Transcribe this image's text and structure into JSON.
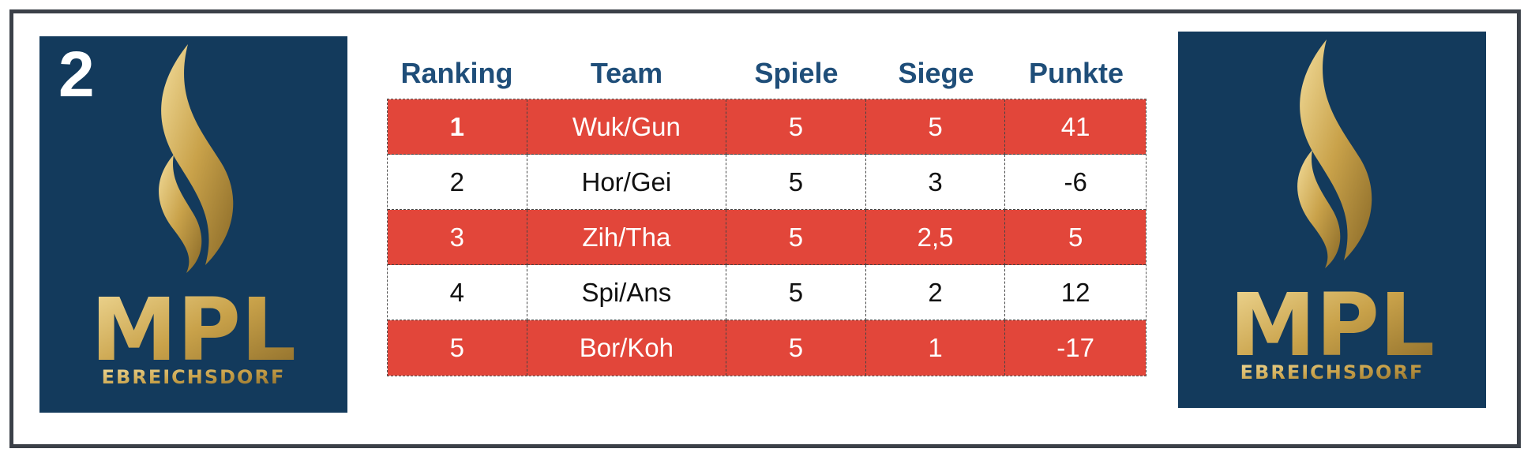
{
  "logo": {
    "icon": "flame-logo-icon",
    "wordmark": "MPL",
    "subtitle": "EBREICHSDORF",
    "gold": "#c9a24a",
    "card_bg": "#133a5c"
  },
  "page_badge": "2",
  "table": {
    "headers": [
      "Ranking",
      "Team",
      "Spiele",
      "Siege",
      "Punkte"
    ],
    "rows": [
      {
        "ranking": "1",
        "team": "Wuk/Gun",
        "spiele": "5",
        "siege": "5",
        "punkte": "41"
      },
      {
        "ranking": "2",
        "team": "Hor/Gei",
        "spiele": "5",
        "siege": "3",
        "punkte": "-6"
      },
      {
        "ranking": "3",
        "team": "Zih/Tha",
        "spiele": "5",
        "siege": "2,5",
        "punkte": "5"
      },
      {
        "ranking": "4",
        "team": "Spi/Ans",
        "spiele": "5",
        "siege": "2",
        "punkte": "12"
      },
      {
        "ranking": "5",
        "team": "Bor/Koh",
        "spiele": "5",
        "siege": "1",
        "punkte": "-17"
      }
    ],
    "header_color": "#1f4e79",
    "highlight_color": "#e2463a"
  }
}
